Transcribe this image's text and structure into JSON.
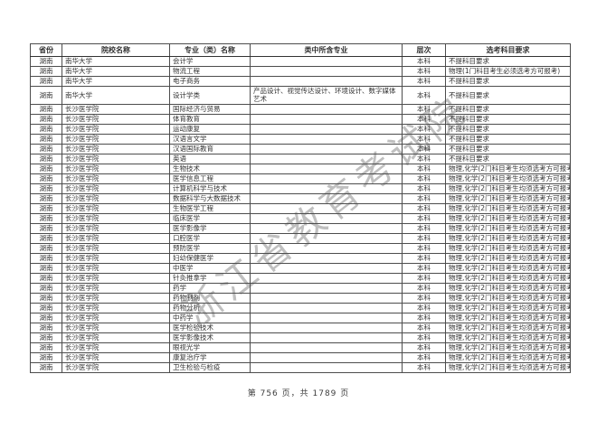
{
  "document": {
    "watermark": "浙江省教育考试院",
    "footer_page_info": "第 756 页，共 1789 页"
  },
  "table": {
    "headers": [
      "省份",
      "院校名称",
      "专业（类）名称",
      "类中所含专业",
      "层次",
      "选考科目要求"
    ],
    "rows": [
      [
        "湖南",
        "南华大学",
        "会计学",
        "",
        "本科",
        "不提科目要求"
      ],
      [
        "湖南",
        "南华大学",
        "物流工程",
        "",
        "本科",
        "物理(1门科目考生必须选考方可报考)"
      ],
      [
        "湖南",
        "南华大学",
        "电子商务",
        "",
        "本科",
        "不提科目要求"
      ],
      [
        "湖南",
        "南华大学",
        "设计学类",
        "产品设计、视觉传达设计、环境设计、数字媒体艺术",
        "本科",
        "不提科目要求"
      ],
      [
        "湖南",
        "长沙医学院",
        "国际经济与贸易",
        "",
        "本科",
        "不提科目要求"
      ],
      [
        "湖南",
        "长沙医学院",
        "体育教育",
        "",
        "本科",
        "不提科目要求"
      ],
      [
        "湖南",
        "长沙医学院",
        "运动康复",
        "",
        "本科",
        "不提科目要求"
      ],
      [
        "湖南",
        "长沙医学院",
        "汉语言文学",
        "",
        "本科",
        "不提科目要求"
      ],
      [
        "湖南",
        "长沙医学院",
        "汉语国际教育",
        "",
        "本科",
        "不提科目要求"
      ],
      [
        "湖南",
        "长沙医学院",
        "英语",
        "",
        "本科",
        "不提科目要求"
      ],
      [
        "湖南",
        "长沙医学院",
        "生物技术",
        "",
        "本科",
        "物理,化学(2门科目考生均须选考方可报考)"
      ],
      [
        "湖南",
        "长沙医学院",
        "医学信息工程",
        "",
        "本科",
        "物理,化学(2门科目考生均须选考方可报考)"
      ],
      [
        "湖南",
        "长沙医学院",
        "计算机科学与技术",
        "",
        "本科",
        "物理,化学(2门科目考生均须选考方可报考)"
      ],
      [
        "湖南",
        "长沙医学院",
        "数据科学与大数据技术",
        "",
        "本科",
        "物理,化学(2门科目考生均须选考方可报考)"
      ],
      [
        "湖南",
        "长沙医学院",
        "生物医学工程",
        "",
        "本科",
        "物理,化学(2门科目考生均须选考方可报考)"
      ],
      [
        "湖南",
        "长沙医学院",
        "临床医学",
        "",
        "本科",
        "物理,化学(2门科目考生均须选考方可报考)"
      ],
      [
        "湖南",
        "长沙医学院",
        "医学影像学",
        "",
        "本科",
        "物理,化学(2门科目考生均须选考方可报考)"
      ],
      [
        "湖南",
        "长沙医学院",
        "口腔医学",
        "",
        "本科",
        "物理,化学(2门科目考生均须选考方可报考)"
      ],
      [
        "湖南",
        "长沙医学院",
        "预防医学",
        "",
        "本科",
        "物理,化学(2门科目考生均须选考方可报考)"
      ],
      [
        "湖南",
        "长沙医学院",
        "妇幼保健医学",
        "",
        "本科",
        "物理,化学(2门科目考生均须选考方可报考)"
      ],
      [
        "湖南",
        "长沙医学院",
        "中医学",
        "",
        "本科",
        "物理,化学(2门科目考生均须选考方可报考)"
      ],
      [
        "湖南",
        "长沙医学院",
        "针灸推拿学",
        "",
        "本科",
        "物理,化学(2门科目考生均须选考方可报考)"
      ],
      [
        "湖南",
        "长沙医学院",
        "药学",
        "",
        "本科",
        "物理,化学(2门科目考生均须选考方可报考)"
      ],
      [
        "湖南",
        "长沙医学院",
        "药物制剂",
        "",
        "本科",
        "物理,化学(2门科目考生均须选考方可报考)"
      ],
      [
        "湖南",
        "长沙医学院",
        "药物分析",
        "",
        "本科",
        "物理,化学(2门科目考生均须选考方可报考)"
      ],
      [
        "湖南",
        "长沙医学院",
        "中药学",
        "",
        "本科",
        "物理,化学(2门科目考生均须选考方可报考)"
      ],
      [
        "湖南",
        "长沙医学院",
        "医学检验技术",
        "",
        "本科",
        "物理,化学(2门科目考生均须选考方可报考)"
      ],
      [
        "湖南",
        "长沙医学院",
        "医学影像技术",
        "",
        "本科",
        "物理,化学(2门科目考生均须选考方可报考)"
      ],
      [
        "湖南",
        "长沙医学院",
        "眼视光学",
        "",
        "本科",
        "物理,化学(2门科目考生均须选考方可报考)"
      ],
      [
        "湖南",
        "长沙医学院",
        "康复治疗学",
        "",
        "本科",
        "物理,化学(2门科目考生均须选考方可报考)"
      ],
      [
        "湖南",
        "长沙医学院",
        "卫生检验与检疫",
        "",
        "本科",
        "物理,化学(2门科目考生均须选考方可报考)"
      ]
    ]
  }
}
